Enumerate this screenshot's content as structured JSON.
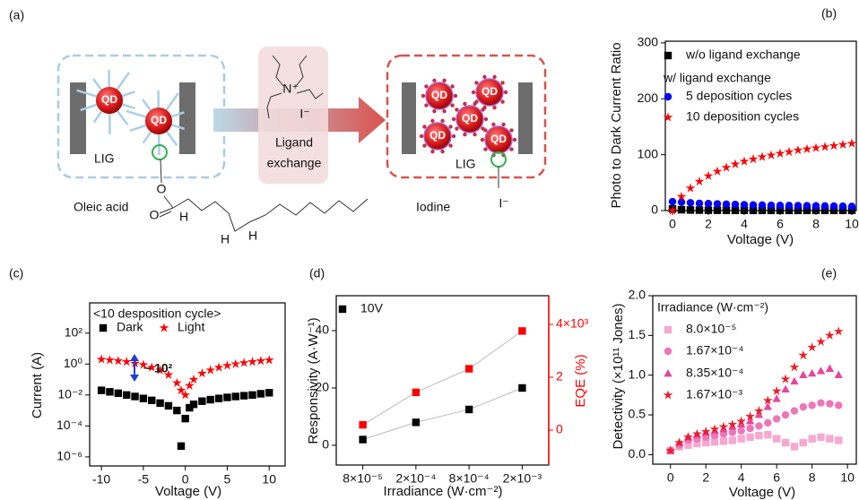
{
  "diagram": {
    "panel_label": "(a)",
    "left": {
      "qd": [
        "QD",
        "QD"
      ],
      "electrode": "LIG",
      "caption": "Oleic acid",
      "atoms": [
        "O",
        "O",
        "H",
        "H",
        "H"
      ]
    },
    "middle": {
      "cation": "N⁺",
      "anion": "I⁻",
      "step": [
        "Ligand",
        "exchange"
      ]
    },
    "right": {
      "qd": [
        "QD",
        "QD",
        "QD",
        "QD",
        "QD"
      ],
      "electrode": "LIG",
      "caption": "Iodine",
      "ion": "I⁻"
    }
  },
  "chart_data": [
    {
      "panel_label": "(b)",
      "type": "scatter",
      "xlabel": "Voltage (V)",
      "ylabel": "Photo to Dark Current Ratio",
      "x": [
        0,
        0.5,
        1,
        1.5,
        2,
        2.5,
        3,
        3.5,
        4,
        4.5,
        5,
        5.5,
        6,
        6.5,
        7,
        7.5,
        8,
        8.5,
        9,
        9.5,
        10
      ],
      "series": [
        {
          "name": "w/o ligand exchange",
          "color": "#000000",
          "marker": "square",
          "values": [
            3,
            1.5,
            1,
            0.8,
            0.6,
            0.5,
            0.5,
            0.4,
            0.4,
            0.4,
            0.3,
            0.3,
            0.3,
            0.3,
            0.3,
            0.3,
            0.3,
            0.3,
            0.3,
            0.3,
            0.3
          ]
        },
        {
          "name": "5 deposition cycles",
          "color": "#0000ff",
          "marker": "circle",
          "values": [
            16,
            15,
            14,
            13,
            12.5,
            12,
            11.5,
            11,
            10.5,
            10,
            9.8,
            9.5,
            9.2,
            9,
            8.8,
            8.6,
            8.4,
            8.2,
            8,
            7.8,
            7.5
          ]
        },
        {
          "name": "10 deposition cycles",
          "color": "#ff0000",
          "marker": "star",
          "values": [
            0,
            25,
            40,
            52,
            62,
            70,
            77,
            83,
            88,
            92,
            96,
            99,
            102,
            105,
            108,
            110,
            112,
            114,
            116,
            118,
            120
          ]
        }
      ],
      "legend_subheading": "w/ ligand exchange",
      "xlim": [
        -0.4,
        10.25
      ],
      "ylim": [
        0,
        303
      ],
      "xticks": [
        0,
        2,
        4,
        6,
        8,
        10
      ],
      "yticks": [
        0,
        100,
        200,
        300
      ]
    },
    {
      "panel_label": "(c)",
      "type": "scatter",
      "title": "<10 desposition cycle>",
      "annotation": "~ 10²",
      "xlabel": "Voltage (V)",
      "ylabel": "Current (A)",
      "ylog": true,
      "x": [
        -10,
        -9,
        -8,
        -7,
        -6,
        -5,
        -4,
        -3,
        -2,
        -1,
        -0.5,
        0,
        0.5,
        1,
        2,
        3,
        4,
        5,
        6,
        7,
        8,
        9,
        10
      ],
      "series": [
        {
          "name": "Dark",
          "color": "#000000",
          "marker": "square",
          "values": [
            0.02,
            0.016,
            0.013,
            0.01,
            0.008,
            0.006,
            0.0045,
            0.003,
            0.002,
            0.001,
            5e-06,
            0.0003,
            0.0015,
            0.0025,
            0.004,
            0.005,
            0.006,
            0.007,
            0.008,
            0.009,
            0.01,
            0.012,
            0.014
          ]
        },
        {
          "name": "Light",
          "color": "#ff0000",
          "marker": "star",
          "values": [
            2,
            1.8,
            1.6,
            1.4,
            1.1,
            0.9,
            0.6,
            0.4,
            0.2,
            0.06,
            0.02,
            0.01,
            0.04,
            0.1,
            0.25,
            0.4,
            0.6,
            0.8,
            1,
            1.2,
            1.4,
            1.6,
            1.8
          ]
        }
      ],
      "xlim": [
        -11.4,
        11.9
      ],
      "ylim": [
        2.6e-07,
        9000
      ],
      "xticks": [
        -10,
        -5,
        0,
        5,
        10
      ],
      "yticks": [
        {
          "value": 100,
          "label": "10²"
        },
        {
          "value": 1,
          "label": "10⁰"
        },
        {
          "value": 0.01,
          "label": "10⁻²"
        },
        {
          "value": 0.0001,
          "label": "10⁻⁴"
        },
        {
          "value": 1e-06,
          "label": "10⁻⁶"
        }
      ]
    },
    {
      "panel_label": "(d)",
      "type": "line",
      "xlabel": "Irradiance (W·cm⁻²)",
      "ylabel": "Responsivity (A·W⁻¹)",
      "y2label": "EQE (%)",
      "categories": [
        "8×10⁻⁵",
        "2×10⁻⁴",
        "8×10⁻⁴",
        "2×10⁻³"
      ],
      "series": [
        {
          "name": "10V",
          "color": "#000000",
          "marker": "square",
          "values": [
            2,
            8,
            12.5,
            20
          ]
        },
        {
          "color": "#ff0000",
          "marker": "square",
          "axis": "y2",
          "values": [
            200,
            1430,
            2320,
            3750
          ]
        }
      ],
      "line_color": "#bbbbbb",
      "ylim": [
        -6.9,
        52.2
      ],
      "yticks": [
        0,
        20,
        40
      ],
      "y2lim": [
        -1322,
        5085
      ],
      "y2ticks": [
        0,
        {
          "value": 2000,
          "label": "2"
        },
        {
          "value": 4000,
          "label": "4×10³"
        }
      ]
    },
    {
      "panel_label": "(e)",
      "type": "scatter",
      "xlabel": "Voltage (V)",
      "ylabel": "Detectivity (×10¹¹ Jones)",
      "legend_title": "Irradiance (W·cm⁻²)",
      "x": [
        0,
        0.5,
        1,
        1.5,
        2,
        2.5,
        3,
        3.5,
        4,
        4.5,
        5,
        5.5,
        6,
        6.5,
        7,
        7.5,
        8,
        8.5,
        9,
        9.5
      ],
      "series": [
        {
          "name": "8.0×10⁻⁵",
          "color": "#f7a8d0",
          "marker": "square",
          "values": [
            0.05,
            0.1,
            0.12,
            0.14,
            0.15,
            0.16,
            0.17,
            0.18,
            0.2,
            0.22,
            0.24,
            0.25,
            0.2,
            0.15,
            0.1,
            0.15,
            0.2,
            0.22,
            0.2,
            0.18
          ]
        },
        {
          "name": "1.67×10⁻⁴",
          "color": "#ef75b8",
          "marker": "circle",
          "values": [
            0.05,
            0.12,
            0.18,
            0.2,
            0.22,
            0.24,
            0.26,
            0.28,
            0.3,
            0.33,
            0.36,
            0.4,
            0.45,
            0.5,
            0.55,
            0.6,
            0.62,
            0.65,
            0.64,
            0.62
          ]
        },
        {
          "name": "8.35×10⁻⁴",
          "color": "#e8459e",
          "marker": "triangle",
          "values": [
            0.05,
            0.15,
            0.22,
            0.25,
            0.28,
            0.3,
            0.32,
            0.35,
            0.38,
            0.42,
            0.5,
            0.6,
            0.7,
            0.82,
            0.92,
            1.0,
            1.02,
            1.05,
            1.08,
            1.0
          ]
        },
        {
          "name": "1.67×10⁻³",
          "color": "#ee1c25",
          "marker": "star",
          "values": [
            0.05,
            0.15,
            0.22,
            0.26,
            0.29,
            0.32,
            0.35,
            0.38,
            0.42,
            0.48,
            0.55,
            0.68,
            0.8,
            0.95,
            1.1,
            1.25,
            1.35,
            1.42,
            1.5,
            1.55
          ]
        }
      ],
      "xlim": [
        -1,
        10.5
      ],
      "ylim": [
        -0.12,
        2.0
      ],
      "xticks": [
        0,
        2,
        4,
        6,
        8,
        10
      ],
      "yticks": [
        {
          "value": 0,
          "label": "0.0"
        },
        0.5,
        {
          "value": 1,
          "label": "1.0"
        },
        1.5,
        {
          "value": 2,
          "label": "2.0"
        }
      ]
    }
  ]
}
